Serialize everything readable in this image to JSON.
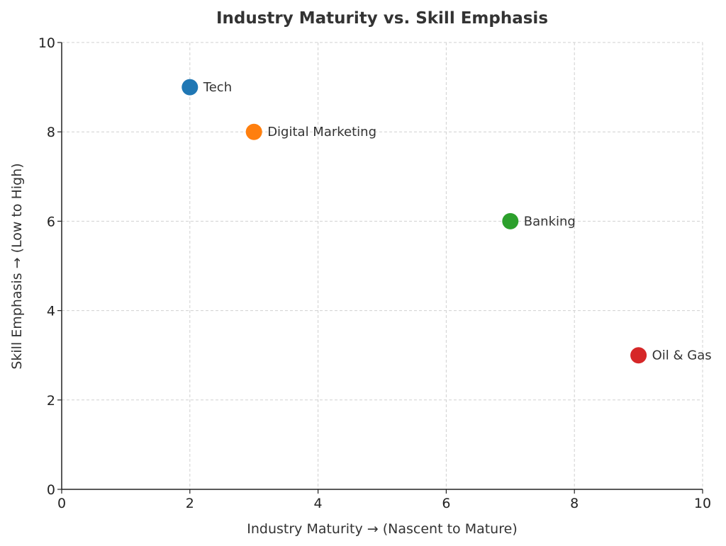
{
  "chart_data": {
    "type": "scatter",
    "title": "Industry Maturity vs. Skill Emphasis",
    "xlabel": "Industry Maturity → (Nascent to Mature)",
    "ylabel": "Skill Emphasis → (Low to High)",
    "xlim": [
      0,
      10
    ],
    "ylim": [
      0,
      10
    ],
    "xticks": [
      "0",
      "2",
      "4",
      "6",
      "8",
      "10"
    ],
    "yticks": [
      "0",
      "2",
      "4",
      "6",
      "8",
      "10"
    ],
    "grid": true,
    "points": [
      {
        "label": "Tech",
        "x": 2,
        "y": 9,
        "color": "#1f77b4"
      },
      {
        "label": "Digital Marketing",
        "x": 3,
        "y": 8,
        "color": "#ff7f0e"
      },
      {
        "label": "Banking",
        "x": 7,
        "y": 6,
        "color": "#2ca02c"
      },
      {
        "label": "Oil & Gas",
        "x": 9,
        "y": 3,
        "color": "#d62728"
      }
    ]
  }
}
